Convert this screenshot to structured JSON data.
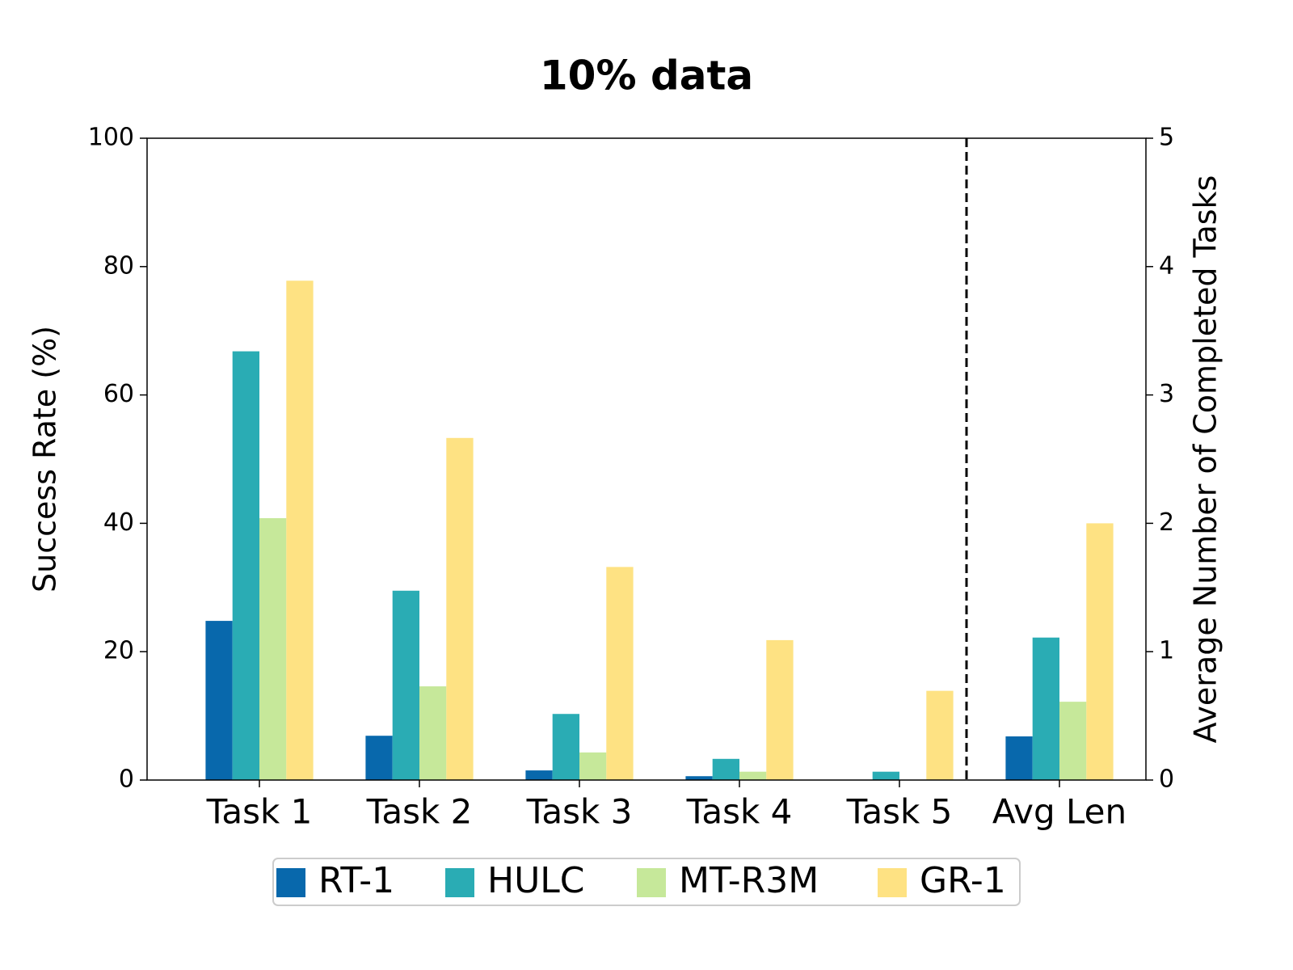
{
  "chart_data": [
    {
      "type": "bar",
      "title": "10% data",
      "ylabel": "Success Rate (%)",
      "categories": [
        "Task 1",
        "Task 2",
        "Task 3",
        "Task 4",
        "Task 5"
      ],
      "series": [
        {
          "name": "RT-1",
          "color": "#0868ac",
          "values": [
            24.8,
            6.9,
            1.5,
            0.6,
            0
          ]
        },
        {
          "name": "HULC",
          "color": "#2aacb4",
          "values": [
            66.8,
            29.5,
            10.3,
            3.3,
            1.3
          ]
        },
        {
          "name": "MT-R3M",
          "color": "#c6e89a",
          "values": [
            40.8,
            14.6,
            4.3,
            1.3,
            0
          ]
        },
        {
          "name": "GR-1",
          "color": "#fee283",
          "values": [
            77.8,
            53.3,
            33.2,
            21.8,
            13.9
          ]
        }
      ],
      "ylim": [
        0,
        100
      ],
      "yticks": [
        0,
        20,
        40,
        60,
        80,
        100
      ],
      "legend": "bottom"
    },
    {
      "type": "bar",
      "y2label": "Average Number of Completed Tasks",
      "categories": [
        "Avg Len"
      ],
      "series": [
        {
          "color": "#0868ac",
          "values": [
            0.34
          ],
          "axis": "y2"
        },
        {
          "color": "#2aacb4",
          "values": [
            1.11
          ],
          "axis": "y2"
        },
        {
          "color": "#c6e89a",
          "values": [
            0.61
          ],
          "axis": "y2"
        },
        {
          "color": "#fee283",
          "values": [
            2.0
          ],
          "axis": "y2"
        }
      ],
      "y2lim": [
        0,
        5
      ],
      "y2ticks": [
        0,
        1,
        2,
        3,
        4,
        5
      ]
    }
  ]
}
